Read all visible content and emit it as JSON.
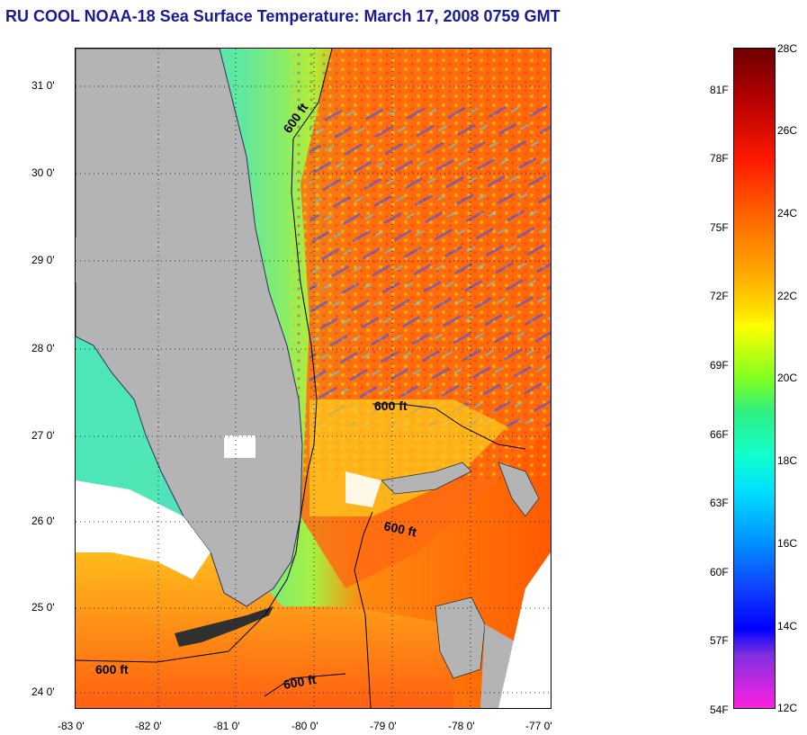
{
  "title": "RU COOL  NOAA-18  Sea Surface Temperature:  March 17, 2008 0759 GMT",
  "map": {
    "lat_range": [
      23.85,
      31.45
    ],
    "lon_range": [
      -83.0,
      -76.8
    ],
    "lat_ticks": [
      "31 0'",
      "30 0'",
      "29 0'",
      "28 0'",
      "27 0'",
      "26 0'",
      "25 0'",
      "24 0'"
    ],
    "lon_ticks": [
      "-83 0'",
      "-82 0'",
      "-81 0'",
      "-80 0'",
      "-79 0'",
      "-78 0'",
      "-77 0'"
    ],
    "contour_label": "600 ft",
    "land_color": "#b4b4b4",
    "cloud_color": "#ffffff"
  },
  "colorbar": {
    "fahrenheit_labels": [
      "81F",
      "78F",
      "75F",
      "72F",
      "69F",
      "66F",
      "63F",
      "60F",
      "57F",
      "54F"
    ],
    "celsius_labels": [
      "28C",
      "26C",
      "24C",
      "22C",
      "20C",
      "18C",
      "16C",
      "14C",
      "12C"
    ],
    "colors": [
      "#6e0000",
      "#c80000",
      "#ff2a00",
      "#ff7a00",
      "#ffc000",
      "#ffff00",
      "#80ff20",
      "#20e880",
      "#00e8ff",
      "#00a0ff",
      "#1040ff",
      "#0000ff",
      "#8020e0",
      "#ff20e0"
    ]
  }
}
